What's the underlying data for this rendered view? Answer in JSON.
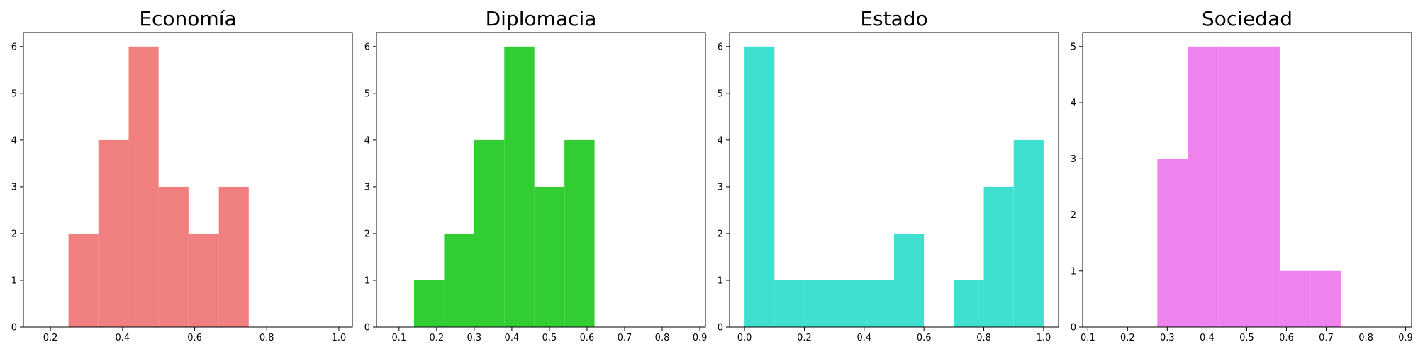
{
  "chart_data": [
    {
      "type": "bar",
      "title": "Economía",
      "color": "#f08080",
      "xlim": [
        0.125,
        1.0375
      ],
      "ylim": [
        0,
        6.3
      ],
      "xticks": [
        0.2,
        0.4,
        0.6,
        0.8,
        1.0
      ],
      "xtick_labels": [
        "0.2",
        "0.4",
        "0.6",
        "0.8",
        "1.0"
      ],
      "yticks": [
        0,
        1,
        2,
        3,
        4,
        5,
        6
      ],
      "ytick_labels": [
        "0",
        "1",
        "2",
        "3",
        "4",
        "5",
        "6"
      ],
      "bins": [
        {
          "x0": 0.25,
          "x1": 0.333,
          "count": 2
        },
        {
          "x0": 0.333,
          "x1": 0.417,
          "count": 4
        },
        {
          "x0": 0.417,
          "x1": 0.5,
          "count": 6
        },
        {
          "x0": 0.5,
          "x1": 0.583,
          "count": 3
        },
        {
          "x0": 0.583,
          "x1": 0.667,
          "count": 2
        },
        {
          "x0": 0.667,
          "x1": 0.75,
          "count": 3
        }
      ]
    },
    {
      "type": "bar",
      "title": "Diplomacia",
      "color": "#32cd32",
      "xlim": [
        0.04,
        0.915
      ],
      "ylim": [
        0,
        6.3
      ],
      "xticks": [
        0.1,
        0.2,
        0.3,
        0.4,
        0.5,
        0.6,
        0.7,
        0.8,
        0.9
      ],
      "xtick_labels": [
        "0.1",
        "0.2",
        "0.3",
        "0.4",
        "0.5",
        "0.6",
        "0.7",
        "0.8",
        "0.9"
      ],
      "yticks": [
        0,
        1,
        2,
        3,
        4,
        5,
        6
      ],
      "ytick_labels": [
        "0",
        "1",
        "2",
        "3",
        "4",
        "5",
        "6"
      ],
      "bins": [
        {
          "x0": 0.14,
          "x1": 0.22,
          "count": 1
        },
        {
          "x0": 0.22,
          "x1": 0.3,
          "count": 2
        },
        {
          "x0": 0.3,
          "x1": 0.38,
          "count": 4
        },
        {
          "x0": 0.38,
          "x1": 0.46,
          "count": 6
        },
        {
          "x0": 0.46,
          "x1": 0.54,
          "count": 3
        },
        {
          "x0": 0.54,
          "x1": 0.62,
          "count": 4
        }
      ]
    },
    {
      "type": "bar",
      "title": "Estado",
      "color": "#40e0d0",
      "xlim": [
        -0.05,
        1.05
      ],
      "ylim": [
        0,
        6.3
      ],
      "xticks": [
        0.0,
        0.2,
        0.4,
        0.6,
        0.8,
        1.0
      ],
      "xtick_labels": [
        "0.0",
        "0.2",
        "0.4",
        "0.6",
        "0.8",
        "1.0"
      ],
      "yticks": [
        0,
        1,
        2,
        3,
        4,
        5,
        6
      ],
      "ytick_labels": [
        "0",
        "1",
        "2",
        "3",
        "4",
        "5",
        "6"
      ],
      "bins": [
        {
          "x0": 0.0,
          "x1": 0.1,
          "count": 6
        },
        {
          "x0": 0.1,
          "x1": 0.2,
          "count": 1
        },
        {
          "x0": 0.2,
          "x1": 0.3,
          "count": 1
        },
        {
          "x0": 0.3,
          "x1": 0.4,
          "count": 1
        },
        {
          "x0": 0.4,
          "x1": 0.5,
          "count": 1
        },
        {
          "x0": 0.5,
          "x1": 0.6,
          "count": 2
        },
        {
          "x0": 0.6,
          "x1": 0.7,
          "count": 0
        },
        {
          "x0": 0.7,
          "x1": 0.8,
          "count": 1
        },
        {
          "x0": 0.8,
          "x1": 0.9,
          "count": 3
        },
        {
          "x0": 0.9,
          "x1": 1.0,
          "count": 4
        }
      ]
    },
    {
      "type": "bar",
      "title": "Sociedad",
      "color": "#ee82ee",
      "xlim": [
        0.087,
        0.915
      ],
      "ylim": [
        0,
        5.25
      ],
      "xticks": [
        0.1,
        0.2,
        0.3,
        0.4,
        0.5,
        0.6,
        0.7,
        0.8,
        0.9
      ],
      "xtick_labels": [
        "0.1",
        "0.2",
        "0.3",
        "0.4",
        "0.5",
        "0.6",
        "0.7",
        "0.8",
        "0.9"
      ],
      "yticks": [
        0,
        1,
        2,
        3,
        4,
        5
      ],
      "ytick_labels": [
        "0",
        "1",
        "2",
        "3",
        "4",
        "5"
      ],
      "bins": [
        {
          "x0": 0.275,
          "x1": 0.352,
          "count": 3
        },
        {
          "x0": 0.352,
          "x1": 0.429,
          "count": 5
        },
        {
          "x0": 0.429,
          "x1": 0.506,
          "count": 5
        },
        {
          "x0": 0.506,
          "x1": 0.583,
          "count": 5
        },
        {
          "x0": 0.583,
          "x1": 0.66,
          "count": 1
        },
        {
          "x0": 0.66,
          "x1": 0.737,
          "count": 1
        }
      ]
    }
  ]
}
